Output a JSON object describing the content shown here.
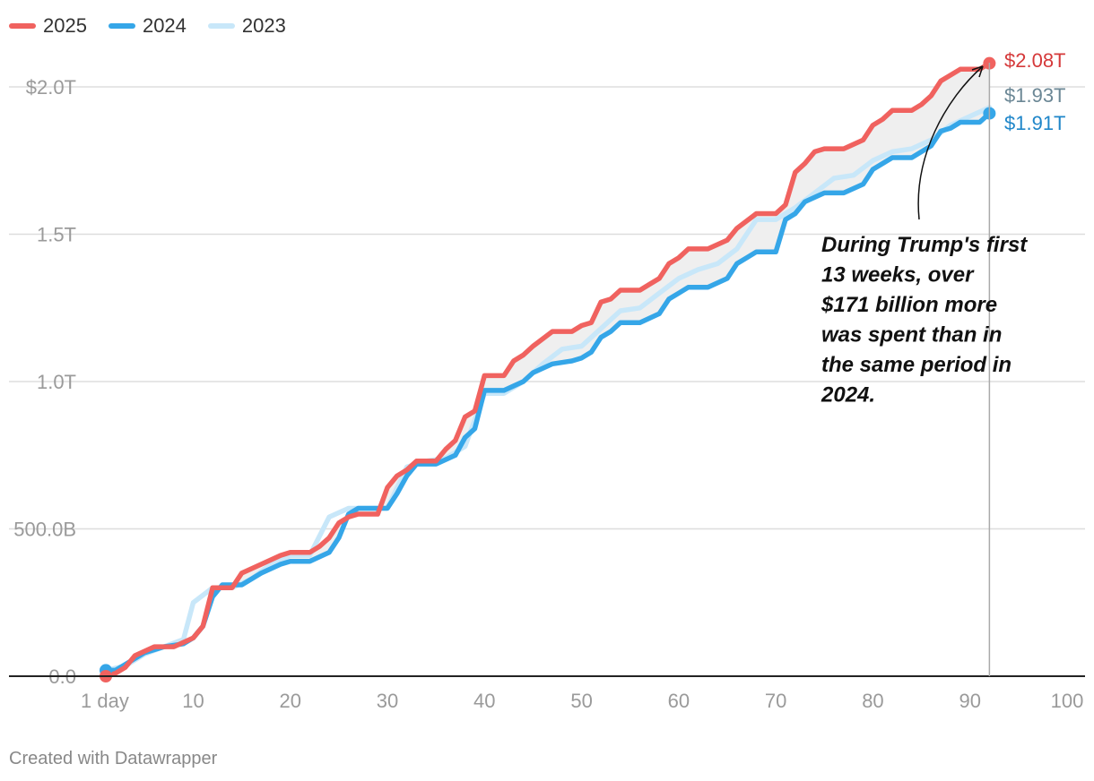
{
  "colors": {
    "series_2025": "#f0625f",
    "series_2024": "#35a6e8",
    "series_2023": "#c8e7f9",
    "gap_fill": "#efefef",
    "grid": "#dddddd",
    "axis_text": "#9a9a9a",
    "annotation": "#111111",
    "end_label_2025": "#d5393a",
    "end_label_2023": "#6b8795",
    "end_label_2024": "#1f86c9"
  },
  "legend": [
    {
      "label": "2025",
      "color_key": "series_2025"
    },
    {
      "label": "2024",
      "color_key": "series_2024"
    },
    {
      "label": "2023",
      "color_key": "series_2023"
    }
  ],
  "annotation": {
    "lines": [
      "During Trump's first",
      "13 weeks, over",
      "$171 billion more",
      "was spent than in",
      "the same period in",
      "2024."
    ]
  },
  "end_labels": {
    "series_2025": "$2.08T",
    "series_2023": "$1.93T",
    "series_2024": "$1.91T"
  },
  "footer": "Created with Datawrapper",
  "chart_data": {
    "type": "line",
    "xlabel": "",
    "ylabel": "",
    "xlim": [
      1,
      100
    ],
    "ylim": [
      0,
      2000
    ],
    "x_ticks": [
      1,
      10,
      20,
      30,
      40,
      50,
      60,
      70,
      80,
      90,
      100
    ],
    "x_tick_labels": [
      "1 day",
      "10",
      "20",
      "30",
      "40",
      "50",
      "60",
      "70",
      "80",
      "90",
      "100"
    ],
    "y_ticks": [
      0,
      500,
      1000,
      1500,
      2000
    ],
    "y_tick_labels": [
      "0.0",
      "500.0B",
      "1.0T",
      "1.5T",
      "$2.0T"
    ],
    "grid": true,
    "legend_position": "top-left",
    "reference_line_x": 92,
    "series": [
      {
        "name": "2023",
        "color_key": "series_2023",
        "points": [
          [
            1,
            20
          ],
          [
            3,
            35
          ],
          [
            5,
            75
          ],
          [
            7,
            100
          ],
          [
            9,
            125
          ],
          [
            10,
            250
          ],
          [
            12,
            300
          ],
          [
            14,
            300
          ],
          [
            16,
            330
          ],
          [
            18,
            380
          ],
          [
            20,
            410
          ],
          [
            22,
            410
          ],
          [
            24,
            540
          ],
          [
            26,
            570
          ],
          [
            28,
            570
          ],
          [
            30,
            570
          ],
          [
            32,
            710
          ],
          [
            34,
            730
          ],
          [
            36,
            740
          ],
          [
            38,
            780
          ],
          [
            40,
            960
          ],
          [
            42,
            960
          ],
          [
            44,
            1000
          ],
          [
            46,
            1060
          ],
          [
            48,
            1110
          ],
          [
            50,
            1120
          ],
          [
            52,
            1180
          ],
          [
            54,
            1240
          ],
          [
            56,
            1250
          ],
          [
            58,
            1300
          ],
          [
            60,
            1350
          ],
          [
            62,
            1380
          ],
          [
            64,
            1400
          ],
          [
            66,
            1450
          ],
          [
            68,
            1550
          ],
          [
            70,
            1550
          ],
          [
            72,
            1590
          ],
          [
            74,
            1640
          ],
          [
            76,
            1690
          ],
          [
            78,
            1700
          ],
          [
            80,
            1750
          ],
          [
            82,
            1780
          ],
          [
            84,
            1790
          ],
          [
            86,
            1820
          ],
          [
            88,
            1870
          ],
          [
            90,
            1900
          ],
          [
            92,
            1930
          ]
        ]
      },
      {
        "name": "2024",
        "color_key": "series_2024",
        "points": [
          [
            1,
            20
          ],
          [
            2,
            20
          ],
          [
            3,
            40
          ],
          [
            5,
            80
          ],
          [
            7,
            100
          ],
          [
            9,
            110
          ],
          [
            10,
            130
          ],
          [
            11,
            170
          ],
          [
            12,
            270
          ],
          [
            13,
            310
          ],
          [
            15,
            310
          ],
          [
            17,
            350
          ],
          [
            19,
            380
          ],
          [
            20,
            390
          ],
          [
            22,
            390
          ],
          [
            24,
            420
          ],
          [
            25,
            470
          ],
          [
            26,
            550
          ],
          [
            27,
            570
          ],
          [
            29,
            570
          ],
          [
            30,
            570
          ],
          [
            31,
            620
          ],
          [
            32,
            680
          ],
          [
            33,
            720
          ],
          [
            35,
            720
          ],
          [
            37,
            750
          ],
          [
            38,
            810
          ],
          [
            39,
            840
          ],
          [
            40,
            970
          ],
          [
            42,
            970
          ],
          [
            44,
            1000
          ],
          [
            45,
            1030
          ],
          [
            47,
            1060
          ],
          [
            49,
            1070
          ],
          [
            50,
            1080
          ],
          [
            51,
            1100
          ],
          [
            52,
            1150
          ],
          [
            53,
            1170
          ],
          [
            54,
            1200
          ],
          [
            56,
            1200
          ],
          [
            58,
            1230
          ],
          [
            59,
            1280
          ],
          [
            60,
            1300
          ],
          [
            61,
            1320
          ],
          [
            63,
            1320
          ],
          [
            65,
            1350
          ],
          [
            66,
            1400
          ],
          [
            67,
            1420
          ],
          [
            68,
            1440
          ],
          [
            70,
            1440
          ],
          [
            71,
            1550
          ],
          [
            72,
            1570
          ],
          [
            73,
            1610
          ],
          [
            75,
            1640
          ],
          [
            77,
            1640
          ],
          [
            79,
            1670
          ],
          [
            80,
            1720
          ],
          [
            82,
            1760
          ],
          [
            84,
            1760
          ],
          [
            86,
            1800
          ],
          [
            87,
            1850
          ],
          [
            88,
            1860
          ],
          [
            89,
            1880
          ],
          [
            91,
            1880
          ],
          [
            92,
            1910
          ]
        ]
      },
      {
        "name": "2025",
        "color_key": "series_2025",
        "points": [
          [
            1,
            0
          ],
          [
            2,
            10
          ],
          [
            3,
            30
          ],
          [
            4,
            70
          ],
          [
            6,
            100
          ],
          [
            8,
            100
          ],
          [
            10,
            130
          ],
          [
            11,
            170
          ],
          [
            12,
            300
          ],
          [
            14,
            300
          ],
          [
            15,
            350
          ],
          [
            17,
            380
          ],
          [
            19,
            410
          ],
          [
            20,
            420
          ],
          [
            22,
            420
          ],
          [
            23,
            440
          ],
          [
            24,
            470
          ],
          [
            25,
            520
          ],
          [
            26,
            540
          ],
          [
            27,
            550
          ],
          [
            29,
            550
          ],
          [
            30,
            640
          ],
          [
            31,
            680
          ],
          [
            32,
            700
          ],
          [
            33,
            730
          ],
          [
            35,
            730
          ],
          [
            36,
            770
          ],
          [
            37,
            800
          ],
          [
            38,
            880
          ],
          [
            39,
            900
          ],
          [
            40,
            1020
          ],
          [
            42,
            1020
          ],
          [
            43,
            1070
          ],
          [
            44,
            1090
          ],
          [
            45,
            1120
          ],
          [
            47,
            1170
          ],
          [
            49,
            1170
          ],
          [
            50,
            1190
          ],
          [
            51,
            1200
          ],
          [
            52,
            1270
          ],
          [
            53,
            1280
          ],
          [
            54,
            1310
          ],
          [
            56,
            1310
          ],
          [
            57,
            1330
          ],
          [
            58,
            1350
          ],
          [
            59,
            1400
          ],
          [
            60,
            1420
          ],
          [
            61,
            1450
          ],
          [
            63,
            1450
          ],
          [
            65,
            1480
          ],
          [
            66,
            1520
          ],
          [
            68,
            1570
          ],
          [
            70,
            1570
          ],
          [
            71,
            1600
          ],
          [
            72,
            1710
          ],
          [
            73,
            1740
          ],
          [
            74,
            1780
          ],
          [
            75,
            1790
          ],
          [
            77,
            1790
          ],
          [
            79,
            1820
          ],
          [
            80,
            1870
          ],
          [
            81,
            1890
          ],
          [
            82,
            1920
          ],
          [
            84,
            1920
          ],
          [
            85,
            1940
          ],
          [
            86,
            1970
          ],
          [
            87,
            2020
          ],
          [
            88,
            2040
          ],
          [
            89,
            2060
          ],
          [
            91,
            2060
          ],
          [
            92,
            2080
          ]
        ]
      }
    ]
  }
}
